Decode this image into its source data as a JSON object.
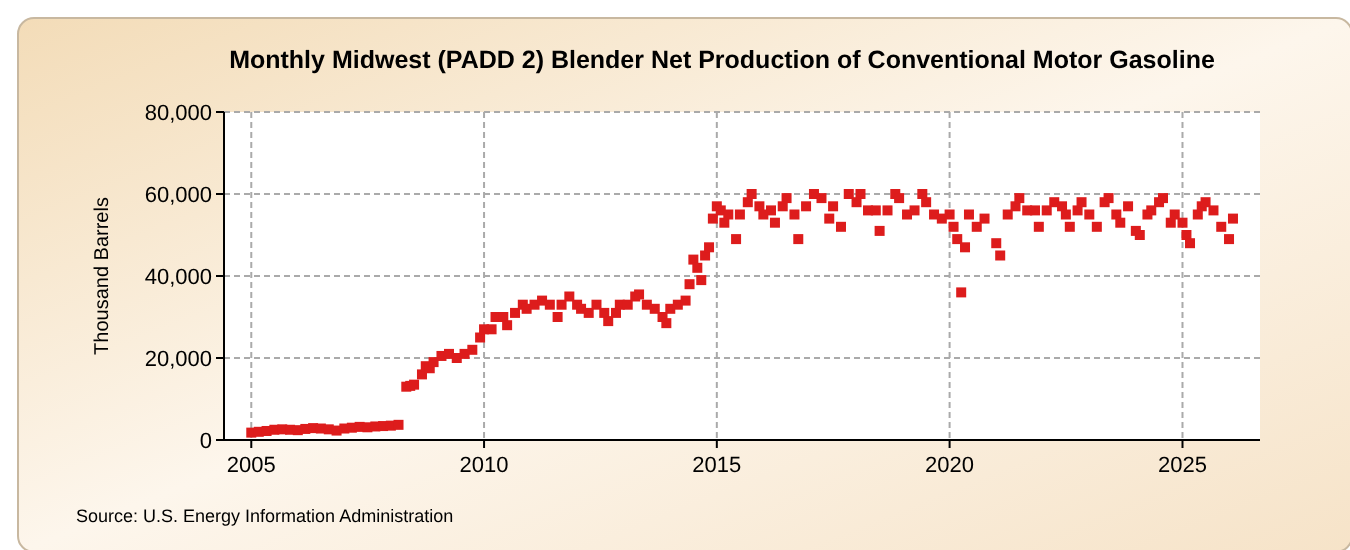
{
  "chart_data": {
    "type": "scatter",
    "title": "Monthly Midwest (PADD 2) Blender Net Production of Conventional Motor Gasoline",
    "ylabel": "Thousand Barrels",
    "annotations": [
      "Source: U.S. Energy Information Administration"
    ],
    "marker": "square",
    "grid": true,
    "xlim": [
      "2004-06",
      "2026-09"
    ],
    "xticks": [
      {
        "value": "2005",
        "label": "2005"
      },
      {
        "value": "2010",
        "label": "2010"
      },
      {
        "value": "2015",
        "label": "2015"
      },
      {
        "value": "2020",
        "label": "2020"
      },
      {
        "value": "2025",
        "label": "2025"
      }
    ],
    "ylim": [
      0,
      80000
    ],
    "yticks": [
      {
        "value": 0,
        "label": "0"
      },
      {
        "value": 20000,
        "label": "20,000"
      },
      {
        "value": 40000,
        "label": "40,000"
      },
      {
        "value": 60000,
        "label": "60,000"
      },
      {
        "value": 80000,
        "label": "80,000"
      }
    ],
    "series": [
      {
        "color": "#dd1c1c",
        "x": [
          "2005-01",
          "2005-03",
          "2005-05",
          "2005-07",
          "2005-09",
          "2005-11",
          "2006-01",
          "2006-03",
          "2006-05",
          "2006-07",
          "2006-09",
          "2006-11",
          "2007-01",
          "2007-03",
          "2007-05",
          "2007-07",
          "2007-09",
          "2007-11",
          "2008-01",
          "2008-03",
          "2008-05",
          "2008-06",
          "2008-07",
          "2008-09",
          "2008-10",
          "2008-11",
          "2008-12",
          "2009-02",
          "2009-04",
          "2009-06",
          "2009-08",
          "2009-10",
          "2009-12",
          "2010-01",
          "2010-03",
          "2010-04",
          "2010-06",
          "2010-07",
          "2010-09",
          "2010-11",
          "2010-12",
          "2011-02",
          "2011-04",
          "2011-06",
          "2011-08",
          "2011-09",
          "2011-11",
          "2012-01",
          "2012-02",
          "2012-04",
          "2012-06",
          "2012-08",
          "2012-09",
          "2012-11",
          "2012-12",
          "2013-02",
          "2013-04",
          "2013-05",
          "2013-07",
          "2013-09",
          "2013-11",
          "2013-12",
          "2014-01",
          "2014-03",
          "2014-05",
          "2014-06",
          "2014-07",
          "2014-08",
          "2014-09",
          "2014-10",
          "2014-11",
          "2014-12",
          "2015-01",
          "2015-02",
          "2015-03",
          "2015-04",
          "2015-06",
          "2015-07",
          "2015-09",
          "2015-10",
          "2015-12",
          "2016-01",
          "2016-03",
          "2016-04",
          "2016-06",
          "2016-07",
          "2016-09",
          "2016-10",
          "2016-12",
          "2017-02",
          "2017-04",
          "2017-06",
          "2017-07",
          "2017-09",
          "2017-11",
          "2018-01",
          "2018-02",
          "2018-04",
          "2018-06",
          "2018-07",
          "2018-09",
          "2018-11",
          "2018-12",
          "2019-02",
          "2019-04",
          "2019-06",
          "2019-07",
          "2019-09",
          "2019-11",
          "2020-01",
          "2020-02",
          "2020-03",
          "2020-04",
          "2020-05",
          "2020-06",
          "2020-08",
          "2020-10",
          "2021-01",
          "2021-02",
          "2021-04",
          "2021-06",
          "2021-07",
          "2021-09",
          "2021-11",
          "2021-12",
          "2022-02",
          "2022-04",
          "2022-06",
          "2022-07",
          "2022-08",
          "2022-10",
          "2022-11",
          "2023-01",
          "2023-03",
          "2023-05",
          "2023-06",
          "2023-08",
          "2023-09",
          "2023-11",
          "2024-01",
          "2024-02",
          "2024-04",
          "2024-05",
          "2024-07",
          "2024-08",
          "2024-10",
          "2024-11",
          "2025-01",
          "2025-02",
          "2025-03",
          "2025-05",
          "2025-06",
          "2025-07",
          "2025-09",
          "2025-11",
          "2026-01",
          "2026-02"
        ],
        "values": [
          1800,
          2000,
          2200,
          2500,
          2600,
          2500,
          2400,
          2700,
          2900,
          2800,
          2600,
          2300,
          2800,
          3000,
          3200,
          3100,
          3300,
          3400,
          3500,
          3700,
          13000,
          13200,
          13500,
          16000,
          18000,
          17500,
          19000,
          20500,
          21000,
          20000,
          21000,
          22000,
          25000,
          27000,
          27000,
          30000,
          30000,
          28000,
          31000,
          33000,
          32000,
          33000,
          34000,
          33000,
          30000,
          33000,
          35000,
          33000,
          32000,
          31000,
          33000,
          31000,
          29000,
          31000,
          33000,
          33000,
          35000,
          35500,
          33000,
          32000,
          30000,
          28500,
          32000,
          33000,
          34000,
          38000,
          44000,
          42000,
          39000,
          45000,
          47000,
          54000,
          57000,
          56000,
          53000,
          55000,
          49000,
          55000,
          58000,
          60000,
          57000,
          55000,
          56000,
          53000,
          57000,
          59000,
          55000,
          49000,
          57000,
          60000,
          59000,
          54000,
          57000,
          52000,
          60000,
          58000,
          60000,
          56000,
          56000,
          51000,
          56000,
          60000,
          59000,
          55000,
          56000,
          60000,
          58000,
          55000,
          54000,
          55000,
          52000,
          49000,
          36000,
          47000,
          55000,
          52000,
          54000,
          48000,
          45000,
          55000,
          57000,
          59000,
          56000,
          56000,
          52000,
          56000,
          58000,
          57000,
          55000,
          52000,
          56000,
          58000,
          55000,
          52000,
          58000,
          59000,
          55000,
          53000,
          57000,
          51000,
          50000,
          55000,
          56000,
          58000,
          59000,
          53000,
          55000,
          53000,
          50000,
          48000,
          55000,
          57000,
          58000,
          56000,
          52000,
          49000,
          54000
        ]
      }
    ]
  }
}
